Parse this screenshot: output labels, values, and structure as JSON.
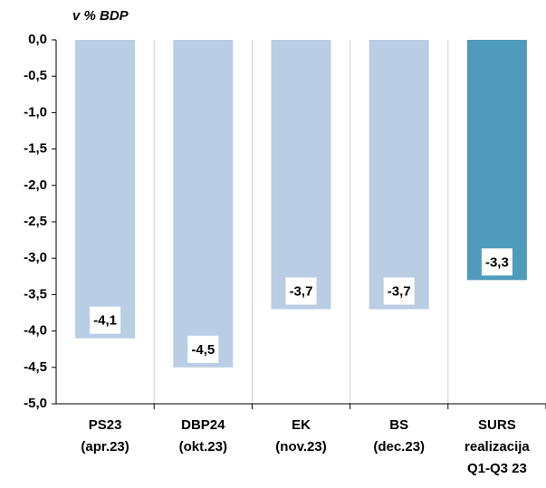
{
  "chart_data": {
    "type": "bar",
    "title": "v % BDP",
    "categories": [
      [
        "PS23",
        "(apr.23)"
      ],
      [
        "DBP24",
        "(okt.23)"
      ],
      [
        "EK",
        "(nov.23)"
      ],
      [
        "BS",
        "(dec.23)"
      ],
      [
        "SURS",
        "realizacija",
        "Q1-Q3 23"
      ]
    ],
    "values": [
      -4.1,
      -4.5,
      -3.7,
      -3.7,
      -3.3
    ],
    "value_labels": [
      "-4,1",
      "-4,5",
      "-3,7",
      "-3,7",
      "-3,3"
    ],
    "colors": [
      "#b9cde5",
      "#b9cde5",
      "#b9cde5",
      "#b9cde5",
      "#4f9bbb"
    ],
    "ylim": [
      -5,
      0
    ],
    "yticks": [
      {
        "value": 0,
        "label": "0,0"
      },
      {
        "value": -0.5,
        "label": "-0,5"
      },
      {
        "value": -1,
        "label": "-1,0"
      },
      {
        "value": -1.5,
        "label": "-1,5"
      },
      {
        "value": -2,
        "label": "-2,0"
      },
      {
        "value": -2.5,
        "label": "-2,5"
      },
      {
        "value": -3,
        "label": "-3,0"
      },
      {
        "value": -3.5,
        "label": "-3,5"
      },
      {
        "value": -4,
        "label": "-4,0"
      },
      {
        "value": -4.5,
        "label": "-4,5"
      },
      {
        "value": -5,
        "label": "-5,0"
      }
    ]
  }
}
